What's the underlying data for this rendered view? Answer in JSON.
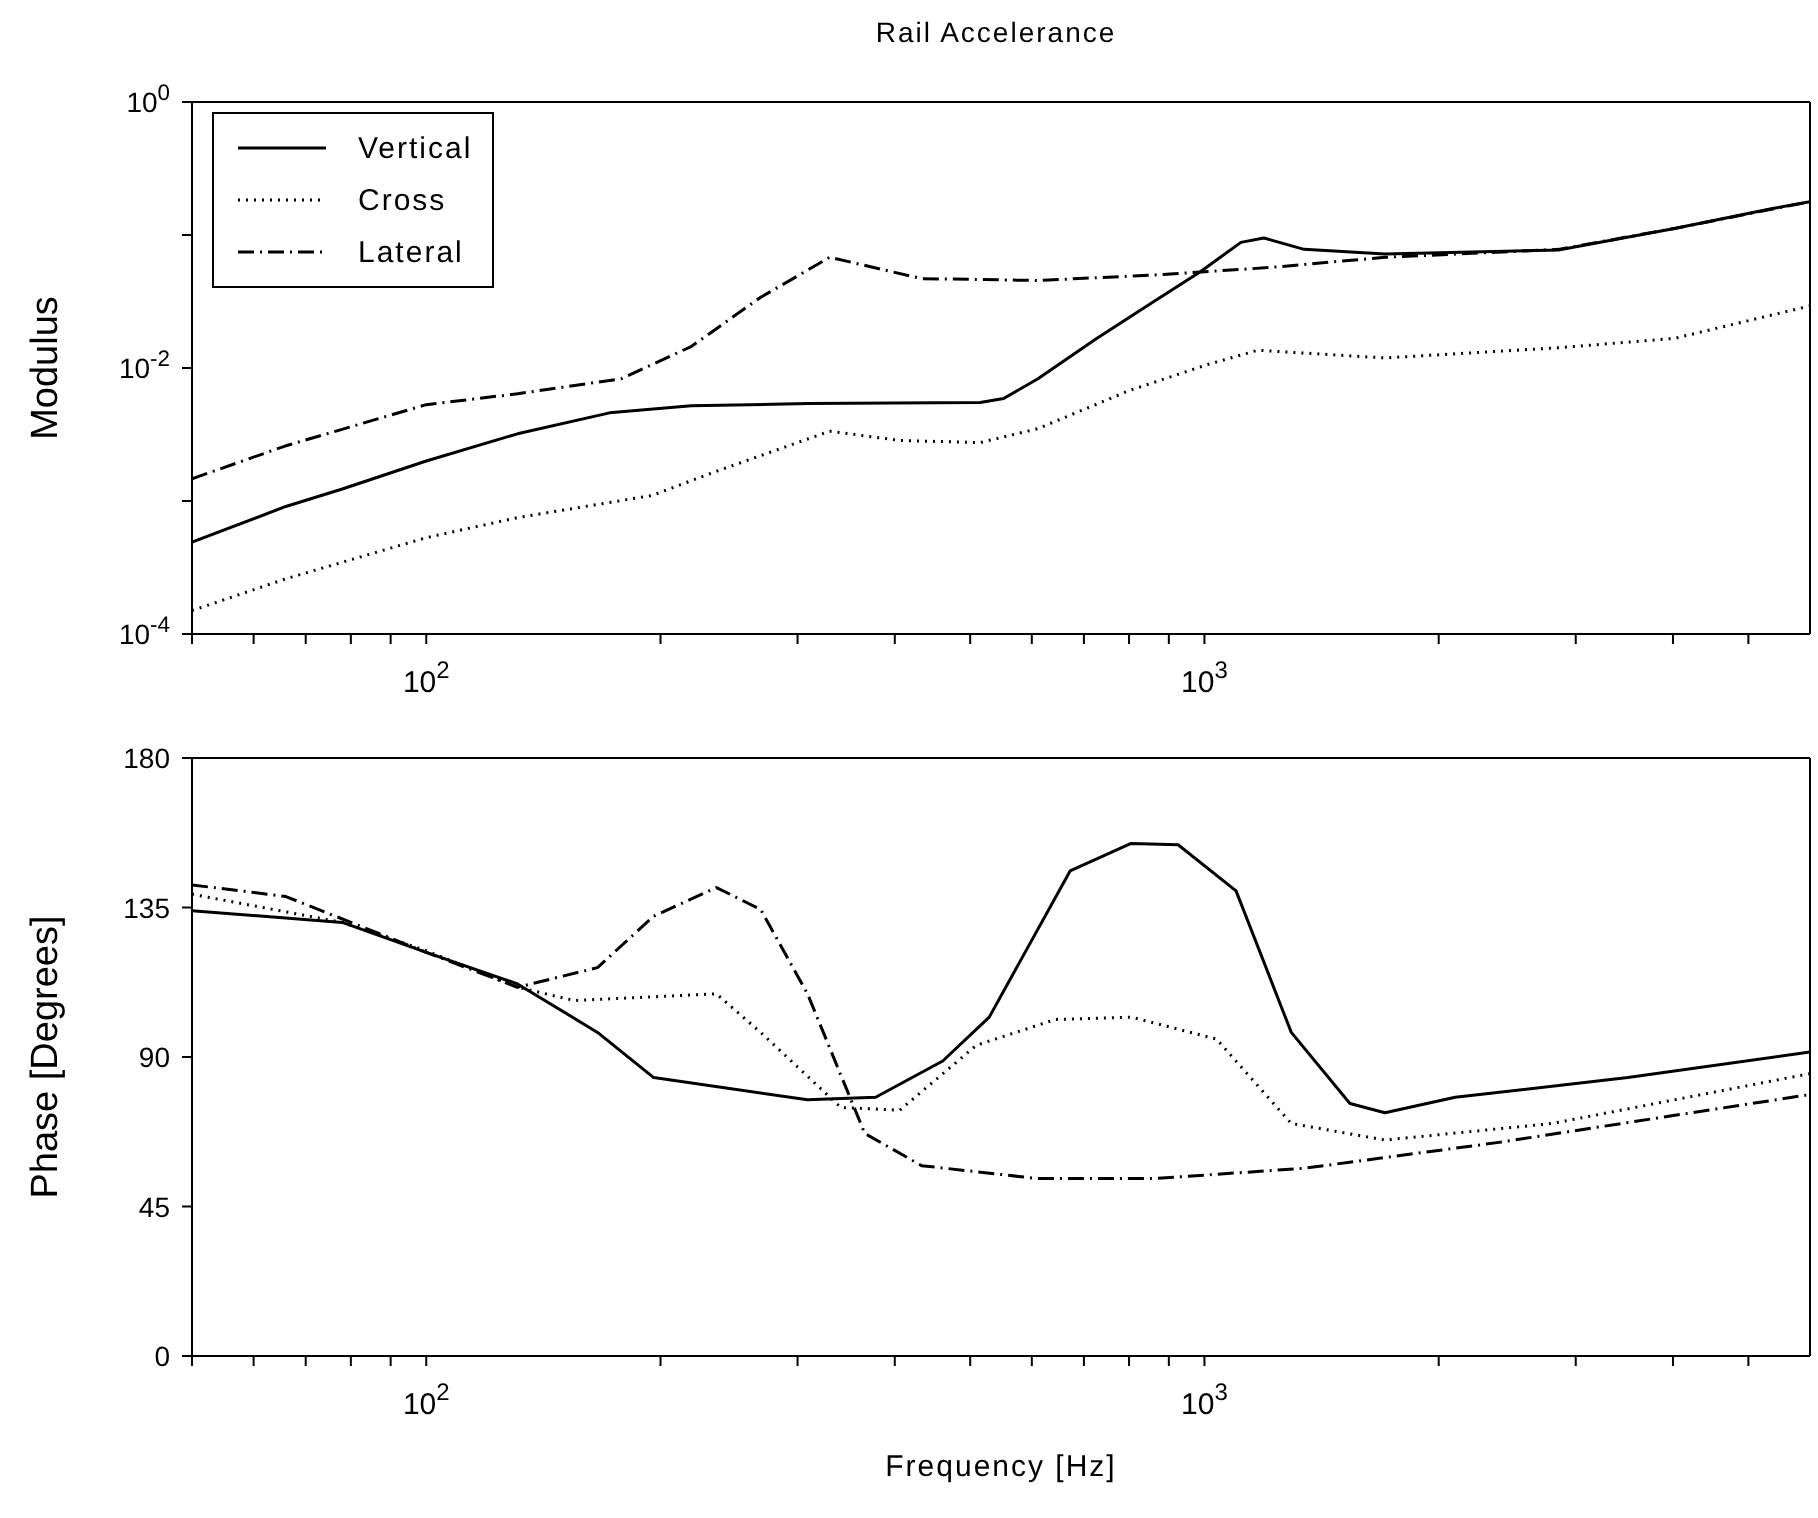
{
  "chart_data": [
    {
      "type": "line",
      "title": "Rail Accelerance",
      "ylabel": "Modulus",
      "log": "xy",
      "legend": "top left",
      "xlim": [
        50,
        6000
      ],
      "ylim": [
        0.0001,
        1
      ],
      "xticks": [
        {
          "value": 50,
          "label": null
        },
        {
          "value": 60,
          "label": null
        },
        {
          "value": 70,
          "label": null
        },
        {
          "value": 80,
          "label": null
        },
        {
          "value": 90,
          "label": null
        },
        {
          "value": 100,
          "label": "10$^{2}$"
        },
        {
          "value": 200,
          "label": null
        },
        {
          "value": 300,
          "label": null
        },
        {
          "value": 400,
          "label": null
        },
        {
          "value": 500,
          "label": null
        },
        {
          "value": 600,
          "label": null
        },
        {
          "value": 700,
          "label": null
        },
        {
          "value": 800,
          "label": null
        },
        {
          "value": 900,
          "label": null
        },
        {
          "value": 1000,
          "label": "10$^{3}$"
        },
        {
          "value": 2000,
          "label": null
        },
        {
          "value": 3000,
          "label": null
        },
        {
          "value": 4000,
          "label": null
        },
        {
          "value": 5000,
          "label": null
        }
      ],
      "yticks": [
        {
          "value": 0.0001,
          "label": "10$^{-4}$"
        },
        {
          "value": 0.001,
          "label": null
        },
        {
          "value": 0.01,
          "label": "10$^{-2}$"
        },
        {
          "value": 0.1,
          "label": null
        },
        {
          "value": 1,
          "label": "10$^{0}$"
        }
      ],
      "series": [
        {
          "name": "Vertical",
          "color": "#000000",
          "line_style": "solid",
          "x": [
            50,
            66,
            78,
            100,
            131,
            172,
            219,
            309,
            515,
            552,
            611,
            726,
            861,
            988,
            1114,
            1192,
            1343,
            1706,
            2851,
            4018,
            5370,
            6000
          ],
          "values": [
            0.00049,
            0.00091,
            0.00123,
            0.002,
            0.0032,
            0.0046,
            0.0052,
            0.0054,
            0.0055,
            0.0059,
            0.0083,
            0.0166,
            0.0316,
            0.053,
            0.088,
            0.095,
            0.078,
            0.072,
            0.077,
            0.112,
            0.158,
            0.178
          ]
        },
        {
          "name": "Cross",
          "color": "#000000",
          "line_style": "dotted",
          "x": [
            50,
            66,
            100,
            131,
            195,
            235,
            330,
            406,
            515,
            611,
            802,
            1014,
            1171,
            1706,
            2851,
            4018,
            6000
          ],
          "values": [
            0.00015,
            0.00026,
            0.00053,
            0.00075,
            0.0011,
            0.00166,
            0.00335,
            0.00285,
            0.00275,
            0.0035,
            0.0068,
            0.0107,
            0.0136,
            0.0119,
            0.0142,
            0.0167,
            0.0293
          ]
        },
        {
          "name": "Lateral",
          "color": "#000000",
          "line_style": "dashdot",
          "x": [
            50,
            66,
            100,
            131,
            178,
            219,
            269,
            330,
            433,
            611,
            861,
            1215,
            1706,
            2851,
            4018,
            6000
          ],
          "values": [
            0.00147,
            0.0026,
            0.0053,
            0.0064,
            0.0083,
            0.0145,
            0.034,
            0.068,
            0.047,
            0.0455,
            0.05,
            0.057,
            0.068,
            0.078,
            0.112,
            0.178
          ]
        }
      ]
    },
    {
      "type": "line",
      "xlabel": "Frequency [Hz]",
      "ylabel": "Phase [Degrees]",
      "log": "x",
      "xlim": [
        50,
        6000
      ],
      "ylim": [
        0,
        180
      ],
      "xticks": [
        {
          "value": 50,
          "label": null
        },
        {
          "value": 60,
          "label": null
        },
        {
          "value": 70,
          "label": null
        },
        {
          "value": 80,
          "label": null
        },
        {
          "value": 90,
          "label": null
        },
        {
          "value": 100,
          "label": "10$^{2}$"
        },
        {
          "value": 200,
          "label": null
        },
        {
          "value": 300,
          "label": null
        },
        {
          "value": 400,
          "label": null
        },
        {
          "value": 500,
          "label": null
        },
        {
          "value": 600,
          "label": null
        },
        {
          "value": 700,
          "label": null
        },
        {
          "value": 800,
          "label": null
        },
        {
          "value": 900,
          "label": null
        },
        {
          "value": 1000,
          "label": "10$^{3}$"
        },
        {
          "value": 2000,
          "label": null
        },
        {
          "value": 3000,
          "label": null
        },
        {
          "value": 4000,
          "label": null
        },
        {
          "value": 5000,
          "label": null
        }
      ],
      "yticks": [
        0,
        45,
        90,
        135,
        180
      ],
      "series": [
        {
          "color": "#000000",
          "line_style": "solid",
          "x": [
            50,
            78,
            100,
            131,
            166,
            196,
            309,
            378,
            461,
            529,
            672,
            805,
            925,
            1098,
            1293,
            1538,
            1706,
            2100,
            3500,
            6000
          ],
          "values": [
            134,
            130.5,
            121.5,
            112,
            97.4,
            83.8,
            77.1,
            77.9,
            88.8,
            102,
            146,
            154.3,
            153.9,
            140,
            97.4,
            76,
            73.2,
            77.9,
            83.8,
            91.5
          ]
        },
        {
          "color": "#000000",
          "line_style": "dotted",
          "x": [
            50,
            78,
            100,
            131,
            155,
            236,
            269,
            341,
            406,
            509,
            643,
            805,
            1036,
            1293,
            1706,
            2800,
            6000
          ],
          "values": [
            139,
            130.5,
            122,
            111,
            107,
            109,
            97.4,
            74.8,
            74,
            93.5,
            101.3,
            102,
            95.4,
            70,
            65,
            70,
            85
          ]
        },
        {
          "color": "#000000",
          "line_style": "dashdot",
          "x": [
            50,
            66,
            100,
            131,
            166,
            196,
            236,
            269,
            309,
            366,
            433,
            611,
            861,
            1343,
            2390,
            6000
          ],
          "values": [
            141.8,
            138.3,
            121.5,
            111,
            116.9,
            132.4,
            141,
            134.4,
            109,
            67,
            57.3,
            53.4,
            53.4,
            56.5,
            64.3,
            78.7
          ]
        }
      ]
    }
  ]
}
